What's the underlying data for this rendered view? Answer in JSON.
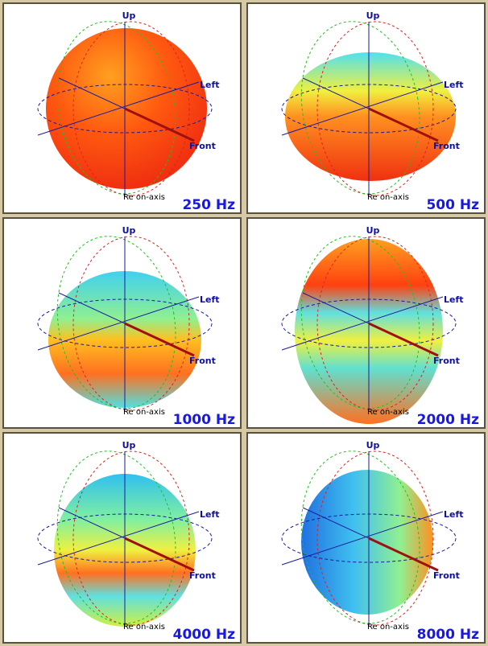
{
  "panels": [
    {
      "up": "Up",
      "left": "Left",
      "front": "Front",
      "reference": "Re on-axis",
      "frequency": "250 Hz"
    },
    {
      "up": "Up",
      "left": "Left",
      "front": "Front",
      "reference": "Re on-axis",
      "frequency": "500 Hz"
    },
    {
      "up": "Up",
      "left": "Left",
      "front": "Front",
      "reference": "Re on-axis",
      "frequency": "1000 Hz"
    },
    {
      "up": "Up",
      "left": "Left",
      "front": "Front",
      "reference": "Re on-axis",
      "frequency": "2000 Hz"
    },
    {
      "up": "Up",
      "left": "Left",
      "front": "Front",
      "reference": "Re on-axis",
      "frequency": "4000 Hz"
    },
    {
      "up": "Up",
      "left": "Left",
      "front": "Front",
      "reference": "Re on-axis",
      "frequency": "8000 Hz"
    }
  ]
}
